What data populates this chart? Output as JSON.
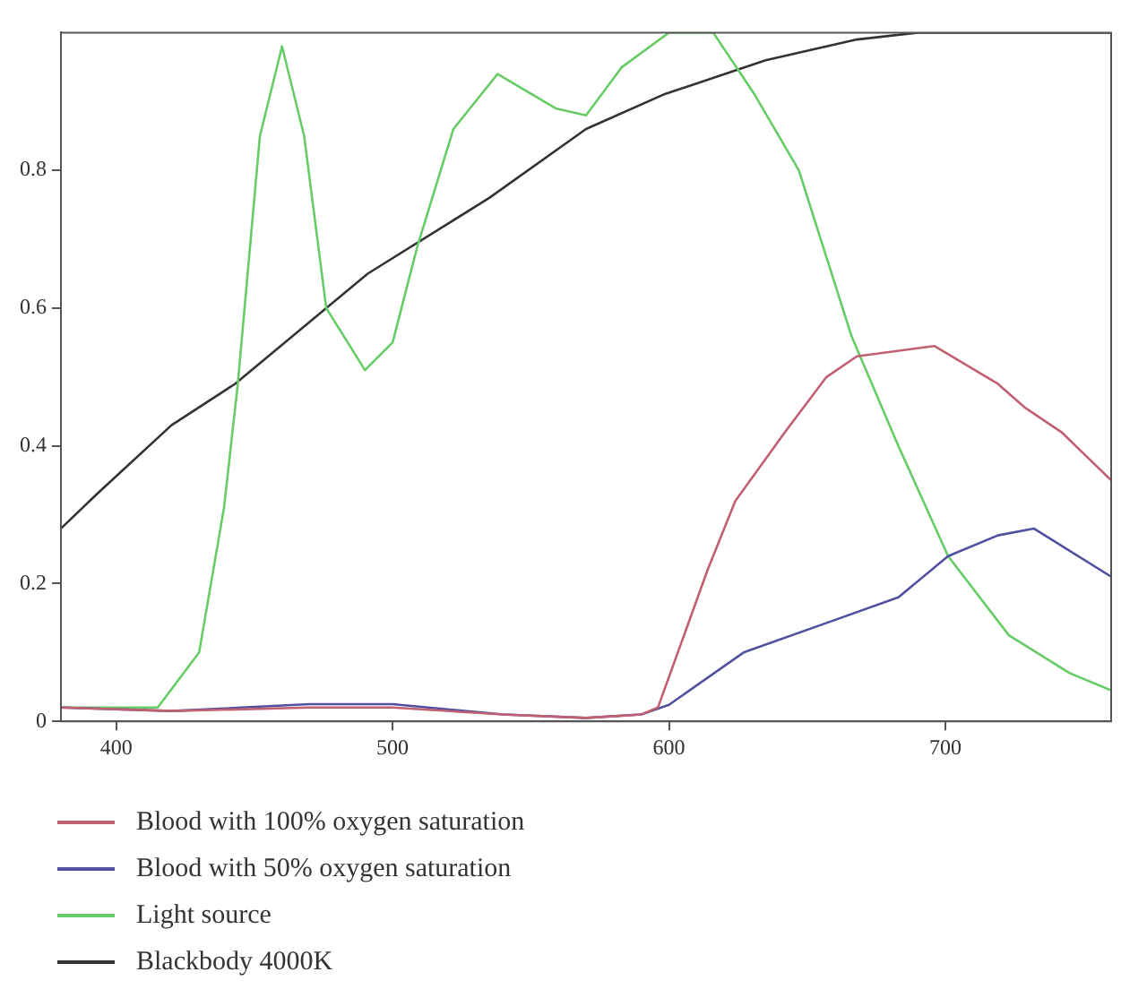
{
  "chart_data": {
    "type": "line",
    "xlim": [
      380,
      760
    ],
    "ylim": [
      0,
      1
    ],
    "xticks": [
      400,
      500,
      600,
      700
    ],
    "yticks": [
      0,
      0.2,
      0.4,
      0.6,
      0.8
    ],
    "grid": false,
    "legend": "bottom",
    "marker": "none",
    "line_style": "solid",
    "series": [
      {
        "name": "Blood with 100% oxygen saturation",
        "color": "#c06070",
        "x": [
          380,
          420,
          470,
          500,
          540,
          570,
          590,
          596,
          614,
          624,
          642,
          657,
          668,
          696,
          719,
          729,
          742,
          760
        ],
        "values": [
          0.02,
          0.015,
          0.02,
          0.02,
          0.01,
          0.005,
          0.01,
          0.02,
          0.22,
          0.32,
          0.42,
          0.5,
          0.53,
          0.545,
          0.49,
          0.455,
          0.42,
          0.35
        ]
      },
      {
        "name": "Blood with 50% oxygen saturation",
        "color": "#5050a0",
        "x": [
          380,
          420,
          470,
          500,
          540,
          570,
          590,
          600,
          627,
          662,
          683,
          701,
          719,
          732,
          760
        ],
        "values": [
          0.02,
          0.015,
          0.025,
          0.025,
          0.01,
          0.005,
          0.01,
          0.024,
          0.1,
          0.15,
          0.18,
          0.24,
          0.27,
          0.28,
          0.21
        ]
      },
      {
        "name": "Light source",
        "color": "#66cc66",
        "x": [
          380,
          415,
          430,
          439,
          444,
          452,
          460,
          468,
          476,
          490,
          500,
          509,
          522,
          538,
          559,
          570,
          583,
          600,
          616,
          631,
          647,
          666,
          683,
          701,
          723,
          745,
          760
        ],
        "values": [
          0.02,
          0.02,
          0.1,
          0.31,
          0.49,
          0.85,
          0.98,
          0.85,
          0.6,
          0.51,
          0.55,
          0.69,
          0.86,
          0.94,
          0.89,
          0.88,
          0.95,
          1,
          1,
          0.91,
          0.8,
          0.56,
          0.4,
          0.24,
          0.125,
          0.07,
          0.045
        ]
      },
      {
        "name": "Blackbody 4000K",
        "color": "#333333",
        "x": [
          380,
          393,
          420,
          443,
          491,
          535,
          570,
          598,
          635,
          668,
          690,
          760
        ],
        "values": [
          0.28,
          0.33,
          0.43,
          0.49,
          0.65,
          0.76,
          0.86,
          0.91,
          0.96,
          0.99,
          1,
          1
        ]
      }
    ]
  }
}
